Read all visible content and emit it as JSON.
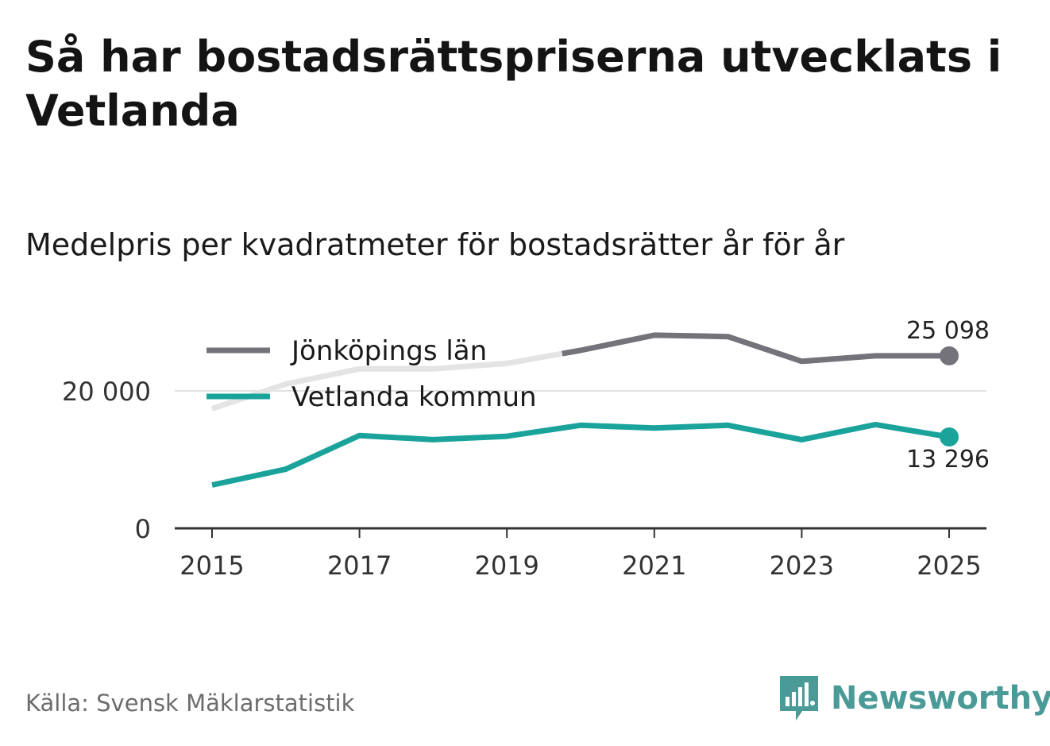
{
  "title": "Så har bostadsrättspriserna utvecklats i Vetlanda",
  "subtitle": "Medelpris per kvadratmeter för bostadsrätter år för år",
  "source": "Källa: Svensk Mäklarstatistik",
  "logo": {
    "text": "Newsworthy",
    "icon": "bar-chart-speech-icon"
  },
  "colors": {
    "county": "#74737b",
    "municipality": "#1aa39b",
    "faded": "#e4e4e4",
    "grid": "#e1e1e1",
    "axis": "#333333"
  },
  "chart_data": {
    "type": "line",
    "title": "Medelpris per kvadratmeter för bostadsrätter år för år",
    "xlabel": "",
    "ylabel": "",
    "x": [
      2015,
      2016,
      2017,
      2018,
      2019,
      2020,
      2021,
      2022,
      2023,
      2024,
      2025
    ],
    "xticks": [
      "2015",
      "2017",
      "2019",
      "2021",
      "2023",
      "2025"
    ],
    "yticks": [
      {
        "value": 0,
        "label": "0"
      },
      {
        "value": 20000,
        "label": "20 000"
      }
    ],
    "xlim": [
      2014.5,
      2025.5
    ],
    "ylim": [
      0,
      30000
    ],
    "grid": true,
    "legend_position": "top-left",
    "series": [
      {
        "name": "Jönköpings län",
        "values": [
          17400,
          21000,
          23200,
          23200,
          24000,
          25900,
          28100,
          27900,
          24300,
          25100,
          25098
        ],
        "end_label": "25 098"
      },
      {
        "name": "Vetlanda kommun",
        "values": [
          6300,
          8600,
          13500,
          12900,
          13400,
          15000,
          14600,
          15000,
          12900,
          15100,
          13296
        ],
        "end_label": "13 296"
      }
    ]
  }
}
